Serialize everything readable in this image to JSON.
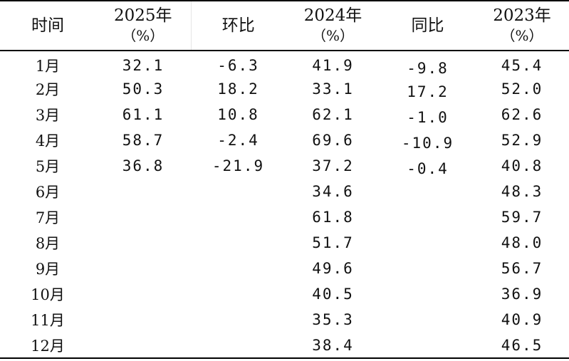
{
  "table": {
    "headers": {
      "time": "时间",
      "y2025_line1": "2025年",
      "y2025_line2": "（%）",
      "mom": "环比",
      "y2024_line1": "2024年",
      "y2024_line2": "（%）",
      "yoy": "同比",
      "y2023_line1": "2023年",
      "y2023_line2": "（%）"
    },
    "rows": [
      {
        "month": "1月",
        "y2025": "32.1",
        "mom": "-6.3",
        "y2024": "41.9",
        "yoy": "-9.8",
        "y2023": "45.4"
      },
      {
        "month": "2月",
        "y2025": "50.3",
        "mom": "18.2",
        "y2024": "33.1",
        "yoy": "17.2",
        "y2023": "52.0"
      },
      {
        "month": "3月",
        "y2025": "61.1",
        "mom": "10.8",
        "y2024": "62.1",
        "yoy": "-1.0",
        "y2023": "62.6"
      },
      {
        "month": "4月",
        "y2025": "58.7",
        "mom": "-2.4",
        "y2024": "69.6",
        "yoy": "-10.9",
        "y2023": "52.9"
      },
      {
        "month": "5月",
        "y2025": "36.8",
        "mom": "-21.9",
        "y2024": "37.2",
        "yoy": "-0.4",
        "y2023": "40.8"
      },
      {
        "month": "6月",
        "y2025": "",
        "mom": "",
        "y2024": "34.6",
        "yoy": "",
        "y2023": "48.3"
      },
      {
        "month": "7月",
        "y2025": "",
        "mom": "",
        "y2024": "61.8",
        "yoy": "",
        "y2023": "59.7"
      },
      {
        "month": "8月",
        "y2025": "",
        "mom": "",
        "y2024": "51.7",
        "yoy": "",
        "y2023": "48.0"
      },
      {
        "month": "9月",
        "y2025": "",
        "mom": "",
        "y2024": "49.6",
        "yoy": "",
        "y2023": "56.7"
      },
      {
        "month": "10月",
        "y2025": "",
        "mom": "",
        "y2024": "40.5",
        "yoy": "",
        "y2023": "36.9"
      },
      {
        "month": "11月",
        "y2025": "",
        "mom": "",
        "y2024": "35.3",
        "yoy": "",
        "y2023": "40.9"
      },
      {
        "month": "12月",
        "y2025": "",
        "mom": "",
        "y2024": "38.4",
        "yoy": "",
        "y2023": "46.5"
      }
    ]
  }
}
